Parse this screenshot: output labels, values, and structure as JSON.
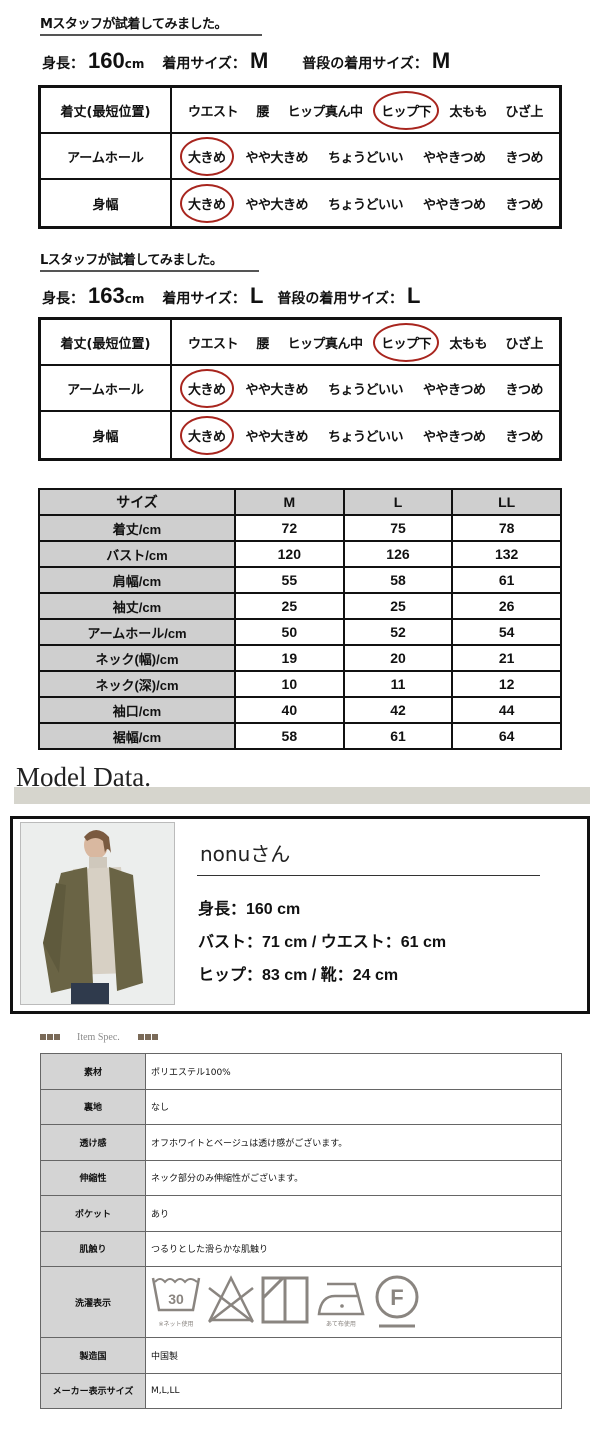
{
  "m_staff": {
    "title": "Mスタッフが試着してみました。",
    "height_label": "身長：",
    "height": "160",
    "height_unit": "cm",
    "wear_label": "着用サイズ：",
    "wear": "M",
    "usual_label": "普段の着用サイズ：",
    "usual": "M",
    "rows": [
      {
        "label": "着丈(最短位置)",
        "options": [
          "ウエスト",
          "腰",
          "ヒップ真ん中",
          "ヒップ下",
          "太もも",
          "ひざ上"
        ],
        "selected": 3
      },
      {
        "label": "アームホール",
        "options": [
          "大きめ",
          "やや大きめ",
          "ちょうどいい",
          "ややきつめ",
          "きつめ"
        ],
        "selected": 0
      },
      {
        "label": "身幅",
        "options": [
          "大きめ",
          "やや大きめ",
          "ちょうどいい",
          "ややきつめ",
          "きつめ"
        ],
        "selected": 0
      }
    ]
  },
  "l_staff": {
    "title": "Lスタッフが試着してみました。",
    "height_label": "身長：",
    "height": "163",
    "height_unit": "cm",
    "wear_label": "着用サイズ：",
    "wear": "L",
    "usual_label": "普段の着用サイズ：",
    "usual": "L",
    "rows": [
      {
        "label": "着丈(最短位置)",
        "options": [
          "ウエスト",
          "腰",
          "ヒップ真ん中",
          "ヒップ下",
          "太もも",
          "ひざ上"
        ],
        "selected": 3
      },
      {
        "label": "アームホール",
        "options": [
          "大きめ",
          "やや大きめ",
          "ちょうどいい",
          "ややきつめ",
          "きつめ"
        ],
        "selected": 0
      },
      {
        "label": "身幅",
        "options": [
          "大きめ",
          "やや大きめ",
          "ちょうどいい",
          "ややきつめ",
          "きつめ"
        ],
        "selected": 0
      }
    ]
  },
  "size_table": {
    "header": [
      "サイズ",
      "M",
      "L",
      "LL"
    ],
    "rows": [
      [
        "着丈/cm",
        "72",
        "75",
        "78"
      ],
      [
        "バスト/cm",
        "120",
        "126",
        "132"
      ],
      [
        "肩幅/cm",
        "55",
        "58",
        "61"
      ],
      [
        "袖丈/cm",
        "25",
        "25",
        "26"
      ],
      [
        "アームホール/cm",
        "50",
        "52",
        "54"
      ],
      [
        "ネック(幅)/cm",
        "19",
        "20",
        "21"
      ],
      [
        "ネック(深)/cm",
        "10",
        "11",
        "12"
      ],
      [
        "袖口/cm",
        "40",
        "42",
        "44"
      ],
      [
        "裾幅/cm",
        "58",
        "61",
        "64"
      ]
    ]
  },
  "model": {
    "section_title": "Model Data.",
    "name": "nonuさん",
    "line1": "身長：160 cm",
    "line2": "バスト：71 cm / ウエスト：61 cm",
    "line3": "ヒップ：83 cm / 靴：24 cm"
  },
  "spec": {
    "title": "Item Spec.",
    "rows": [
      {
        "key": "素材",
        "value": "ポリエステル100%"
      },
      {
        "key": "裏地",
        "value": "なし"
      },
      {
        "key": "透け感",
        "value": "オフホワイトとベージュは透け感がございます。"
      },
      {
        "key": "伸縮性",
        "value": "ネック部分のみ伸縮性がございます。"
      },
      {
        "key": "ポケット",
        "value": "あり"
      },
      {
        "key": "肌触り",
        "value": "つるりとした滑らかな肌触り"
      },
      {
        "key": "洗濯表示",
        "wash": true,
        "icons": [
          "wash-30-net-icon",
          "no-bleach-icon",
          "shade-drip-dry-icon",
          "iron-low-cloth-icon",
          "dry-clean-f-icon"
        ],
        "wash_temp": "30",
        "net_note": "※ネット使用",
        "iron_note": "あて布使用",
        "dry_letter": "F"
      },
      {
        "key": "製造国",
        "value": "中国製"
      },
      {
        "key": "メーカー表示サイズ",
        "value": "M,L,LL"
      }
    ]
  },
  "colors": {
    "circle": "#a8251e",
    "label_bg": "#cfcfcf",
    "bar": "#d6d5cd",
    "square": "#7a6a58",
    "icon": "#8a8580"
  }
}
